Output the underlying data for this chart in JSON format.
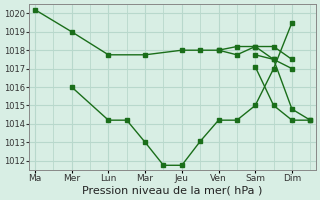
{
  "bg_color": "#d8eee4",
  "grid_color": "#b8d8cc",
  "line_color": "#1a6e1a",
  "xlabel": "Pression niveau de la mer( hPa )",
  "xlabel_fontsize": 8,
  "ylim": [
    1011.5,
    1020.5
  ],
  "yticks": [
    1012,
    1013,
    1014,
    1015,
    1016,
    1017,
    1018,
    1019,
    1020
  ],
  "major_x_positions": [
    0,
    2,
    4,
    6,
    8,
    10,
    12,
    14
  ],
  "major_x_labels": [
    "Ma",
    "Mer",
    "Lun",
    "Mar",
    "Jeu",
    "Ven",
    "Sam",
    "Dim"
  ],
  "line1_x": [
    0,
    2,
    4,
    6,
    8,
    9,
    10,
    11,
    12,
    13,
    14
  ],
  "line1_y": [
    1020.2,
    1019.0,
    1017.75,
    1017.75,
    1018.0,
    1018.0,
    1018.0,
    1017.75,
    1018.2,
    1018.2,
    1017.5
  ],
  "line2_x": [
    2,
    4,
    5,
    6,
    7,
    8,
    9,
    10,
    11,
    12,
    13,
    14
  ],
  "line2_y": [
    1016.0,
    1014.2,
    1014.2,
    1013.0,
    1011.75,
    1011.75,
    1013.05,
    1014.2,
    1014.2,
    1015.0,
    1017.0,
    1019.5
  ],
  "line3_x": [
    10,
    11,
    12,
    13,
    14
  ],
  "line3_y": [
    1018.0,
    1018.2,
    1018.2,
    1017.5,
    1017.0
  ],
  "line4_x": [
    12,
    13,
    14,
    15
  ],
  "line4_y": [
    1017.1,
    1015.0,
    1014.2,
    1014.2
  ],
  "line5_x": [
    12,
    13,
    14,
    15
  ],
  "line5_y": [
    1017.75,
    1017.5,
    1014.8,
    1014.2
  ],
  "figsize": [
    3.2,
    2.0
  ],
  "dpi": 100
}
